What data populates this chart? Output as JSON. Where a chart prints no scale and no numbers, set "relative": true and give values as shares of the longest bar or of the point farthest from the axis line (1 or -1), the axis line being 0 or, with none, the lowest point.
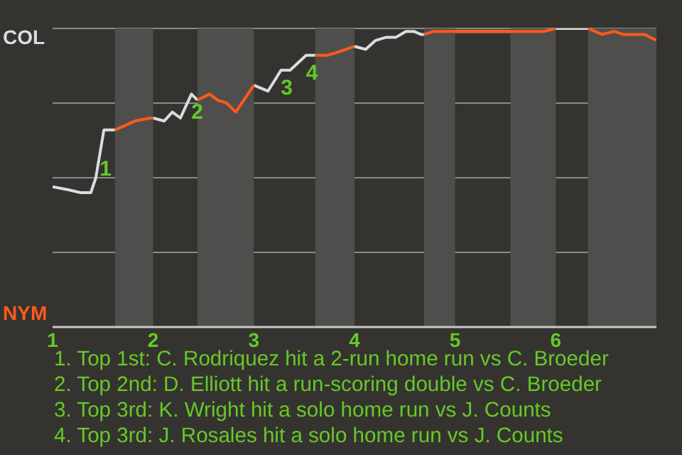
{
  "chart_data": {
    "type": "line",
    "relative": true,
    "marker": "none",
    "line_style": "solid",
    "grid": true,
    "x": [
      1,
      1.15,
      1.28,
      1.38,
      1.43,
      1.51,
      1.62,
      1.82,
      1.97,
      2,
      2.11,
      2.19,
      2.27,
      2.38,
      2.44,
      2.56,
      2.64,
      2.73,
      2.82,
      3,
      3.14,
      3.27,
      3.36,
      3.52,
      3.61,
      3.73,
      3.83,
      4,
      4.11,
      4.21,
      4.31,
      4.41,
      4.51,
      4.59,
      4.66,
      4.69,
      4.79,
      4.91,
      5,
      5.55,
      5.73,
      5.88,
      6,
      6.11,
      6.32,
      6.46,
      6.58,
      6.67,
      6.88,
      6.94,
      7
    ],
    "xlim": [
      1,
      7
    ],
    "xticks": [
      1,
      2,
      3,
      4,
      5,
      6
    ],
    "series": [
      {
        "name": "COL",
        "color": "#d8dde2",
        "values": [
          0.47,
          0.46,
          0.45,
          0.45,
          0.5,
          0.66,
          0.66,
          null,
          null,
          0.7,
          0.69,
          0.72,
          0.7,
          0.78,
          0.76,
          null,
          null,
          null,
          null,
          0.81,
          0.79,
          0.86,
          0.86,
          0.91,
          0.91,
          null,
          null,
          0.94,
          0.93,
          0.96,
          0.97,
          0.97,
          0.99,
          0.99,
          0.98,
          0.98,
          null,
          null,
          0.99,
          0.99,
          null,
          null,
          1,
          1,
          1,
          null,
          null,
          null,
          null,
          null,
          null
        ]
      },
      {
        "name": "NYM",
        "color": "#ff5a1a",
        "values": [
          null,
          null,
          null,
          null,
          null,
          null,
          0.66,
          0.69,
          0.7,
          0.7,
          null,
          null,
          null,
          null,
          0.76,
          0.78,
          0.76,
          0.75,
          0.72,
          0.81,
          null,
          null,
          null,
          null,
          0.91,
          0.91,
          0.92,
          0.94,
          null,
          null,
          null,
          null,
          null,
          null,
          null,
          0.98,
          0.99,
          0.99,
          0.99,
          0.99,
          0.99,
          0.99,
          1,
          null,
          1,
          0.98,
          0.99,
          0.98,
          0.98,
          0.97,
          0.96
        ]
      }
    ],
    "bands": [
      {
        "axis": "x",
        "from": 1.62,
        "to": 2,
        "color": "#4f4e4c"
      },
      {
        "axis": "x",
        "from": 2.44,
        "to": 3,
        "color": "#4f4e4c"
      },
      {
        "axis": "x",
        "from": 3.61,
        "to": 4,
        "color": "#4f4e4c"
      },
      {
        "axis": "x",
        "from": 4.69,
        "to": 5,
        "color": "#4f4e4c"
      },
      {
        "axis": "x",
        "from": 5.55,
        "to": 6,
        "color": "#4f4e4c"
      },
      {
        "axis": "x",
        "from": 6.32,
        "to": 7,
        "color": "#4f4e4c"
      }
    ],
    "annotations": [
      {
        "text": "1",
        "x": 1.47,
        "y": 0.59
      },
      {
        "text": "2",
        "x": 2.38,
        "y": 0.78
      },
      {
        "text": "3",
        "x": 3.27,
        "y": 0.86
      },
      {
        "text": "4",
        "x": 3.52,
        "y": 0.91
      },
      "1. Top 1st: C. Rodriquez hit a 2-run home run vs C. Broeder",
      "2. Top 2nd: D. Elliott hit a run-scoring double vs C. Broeder",
      "3. Top 3rd: K. Wright hit a solo home run vs J. Counts",
      "4. Top 3rd: J. Rosales hit a solo home run vs J. Counts"
    ]
  }
}
